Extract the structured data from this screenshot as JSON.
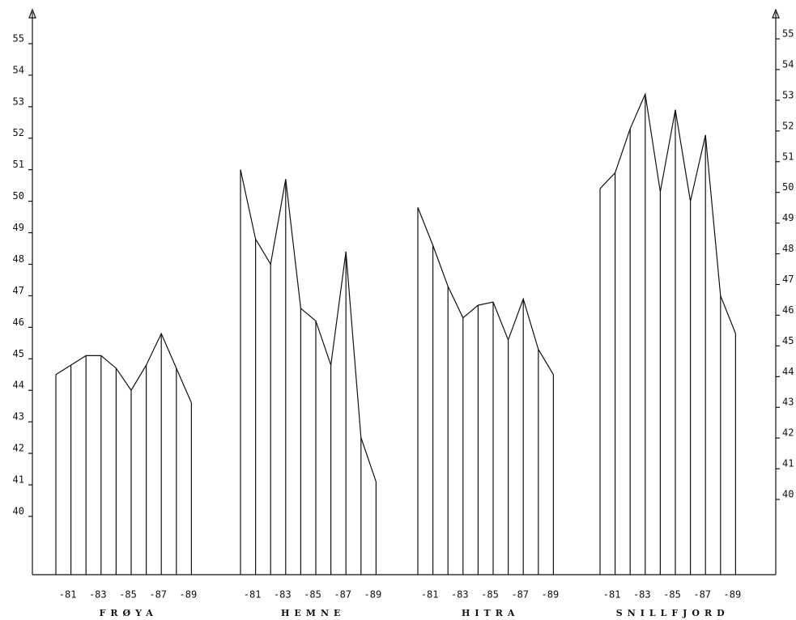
{
  "chart_data": {
    "type": "line",
    "drop_lines": true,
    "color": "#111111",
    "categories": [
      null,
      "-81",
      null,
      "-83",
      null,
      "-85",
      null,
      "-87",
      null,
      "-89"
    ],
    "series": [
      {
        "name": "FRØYA",
        "values": [
          44.5,
          44.8,
          45.1,
          45.1,
          44.7,
          44.0,
          44.8,
          45.8,
          44.7,
          43.6
        ]
      },
      {
        "name": "HEMNE",
        "values": [
          51.0,
          48.8,
          48.0,
          50.7,
          46.6,
          46.2,
          44.8,
          48.4,
          42.5,
          41.1
        ]
      },
      {
        "name": "HITRA",
        "values": [
          49.8,
          48.6,
          47.3,
          46.3,
          46.7,
          46.8,
          45.6,
          46.9,
          45.3,
          44.5
        ]
      },
      {
        "name": "SNILLFJORD",
        "values": [
          50.4,
          50.9,
          52.3,
          53.4,
          50.3,
          52.9,
          50.0,
          52.1,
          47.0,
          45.8
        ]
      }
    ],
    "ylim": [
      38.15,
      56
    ],
    "yticks": [
      40,
      41,
      42,
      43,
      44,
      45,
      46,
      47,
      48,
      49,
      50,
      51,
      52,
      53,
      54,
      55
    ],
    "y2lim": [
      37.55,
      55.87
    ],
    "y2ticks": [
      40,
      41,
      42,
      43,
      44,
      45,
      46,
      47,
      48,
      49,
      50,
      51,
      52,
      53,
      54,
      55
    ]
  }
}
